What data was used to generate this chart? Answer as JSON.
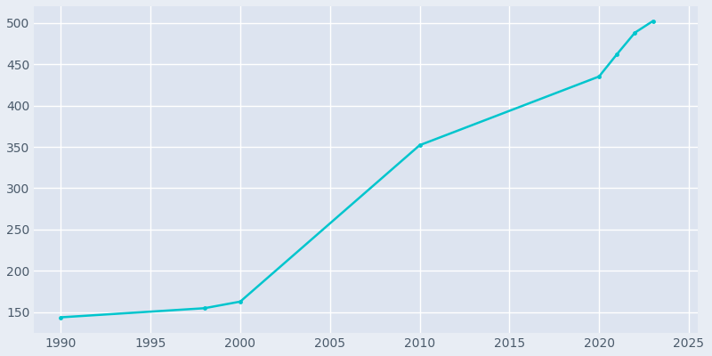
{
  "years": [
    1990,
    1998,
    2000,
    2010,
    2020,
    2021,
    2022,
    2023
  ],
  "population": [
    144,
    155,
    163,
    352,
    435,
    462,
    488,
    502
  ],
  "line_color": "#00c5cd",
  "marker_color": "#00c5cd",
  "bg_color": "#e8edf4",
  "plot_bg_color": "#dde4f0",
  "grid_color": "#ffffff",
  "tick_color": "#4a5a6a",
  "xlim": [
    1988.5,
    2025.5
  ],
  "ylim": [
    125,
    520
  ],
  "xticks": [
    1990,
    1995,
    2000,
    2005,
    2010,
    2015,
    2020,
    2025
  ],
  "yticks": [
    150,
    200,
    250,
    300,
    350,
    400,
    450,
    500
  ],
  "line_width": 1.8,
  "marker_size": 3.5
}
